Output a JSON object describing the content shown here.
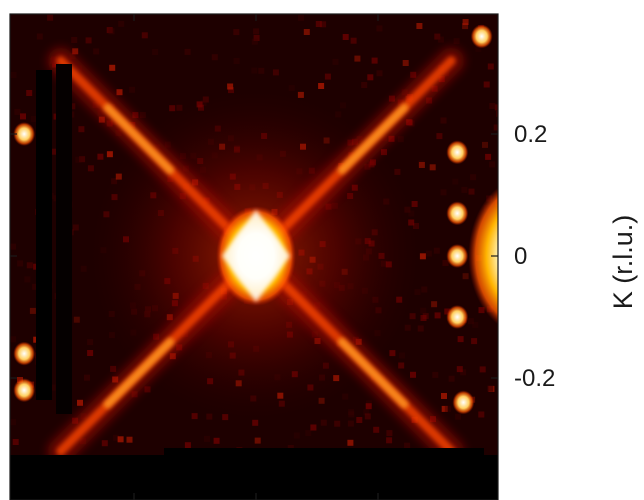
{
  "chart_data": {
    "type": "heatmap",
    "title": "",
    "xlabel": "",
    "ylabel": "K (r.l.u.)",
    "ylim": [
      -0.4,
      0.4
    ],
    "yticks": [
      {
        "value": 0.2,
        "label": "0.2"
      },
      {
        "value": 0,
        "label": "0"
      },
      {
        "value": -0.2,
        "label": "-0.2"
      }
    ],
    "xticks": [
      {
        "value": -0.2,
        "label": ""
      },
      {
        "value": 0,
        "label": ""
      },
      {
        "value": 0.2,
        "label": ""
      }
    ],
    "colormap": [
      "#000000",
      "#3c0000",
      "#7a0000",
      "#c01a00",
      "#ff5a00",
      "#ffb400",
      "#ffffff"
    ],
    "features": {
      "central_bragg_peak": {
        "x": 0,
        "y": 0,
        "intensity": 1.0
      },
      "diagonal_rods": [
        {
          "from": [
            -0.32,
            0.32
          ],
          "to": [
            0.32,
            -0.32
          ]
        },
        {
          "from": [
            -0.32,
            -0.32
          ],
          "to": [
            0.32,
            0.32
          ]
        }
      ],
      "edge_peaks": [
        {
          "x": 0.37,
          "y": 0.36
        },
        {
          "x": 0.33,
          "y": 0.17
        },
        {
          "x": 0.33,
          "y": 0.07
        },
        {
          "x": 0.33,
          "y": 0.0
        },
        {
          "x": 0.33,
          "y": -0.1
        },
        {
          "x": 0.34,
          "y": -0.24
        },
        {
          "x": -0.38,
          "y": 0.2
        },
        {
          "x": -0.38,
          "y": -0.16
        },
        {
          "x": -0.38,
          "y": -0.22
        }
      ],
      "neighbor_bragg_peak": {
        "x": 0.43,
        "y": 0.0,
        "intensity": 1.0
      }
    }
  }
}
